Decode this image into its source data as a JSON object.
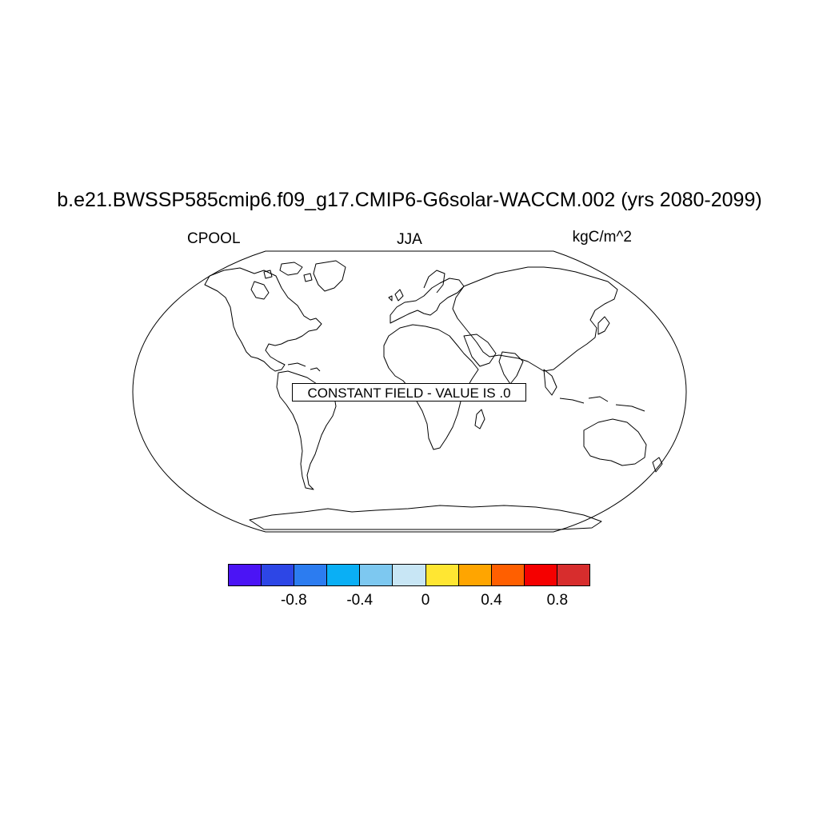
{
  "title": "b.e21.BWSSP585cmip6.f09_g17.CMIP6-G6solar-WACCM.002 (yrs 2080-2099)",
  "left_label": "CPOOL",
  "center_label": "JJA",
  "right_label": "kgC/m^2",
  "map": {
    "projection": "robinson",
    "field_message": "CONSTANT FIELD - VALUE IS .0"
  },
  "colorbar": {
    "colors": [
      "#4b14f5",
      "#2d46e6",
      "#2c7cf0",
      "#0aaff5",
      "#7dc8f0",
      "#c8e6f5",
      "#ffe632",
      "#ffa500",
      "#ff5f00",
      "#f50000",
      "#d72d2d"
    ],
    "tick_labels": [
      {
        "label": "-0.8",
        "value": -0.8
      },
      {
        "label": "-0.4",
        "value": -0.4
      },
      {
        "label": "0",
        "value": 0
      },
      {
        "label": "0.4",
        "value": 0.4
      },
      {
        "label": "0.8",
        "value": 0.8
      }
    ],
    "boundaries": [
      -1.0,
      -0.8,
      -0.6,
      -0.4,
      -0.2,
      0,
      0.2,
      0.4,
      0.6,
      0.8,
      1.0
    ]
  }
}
